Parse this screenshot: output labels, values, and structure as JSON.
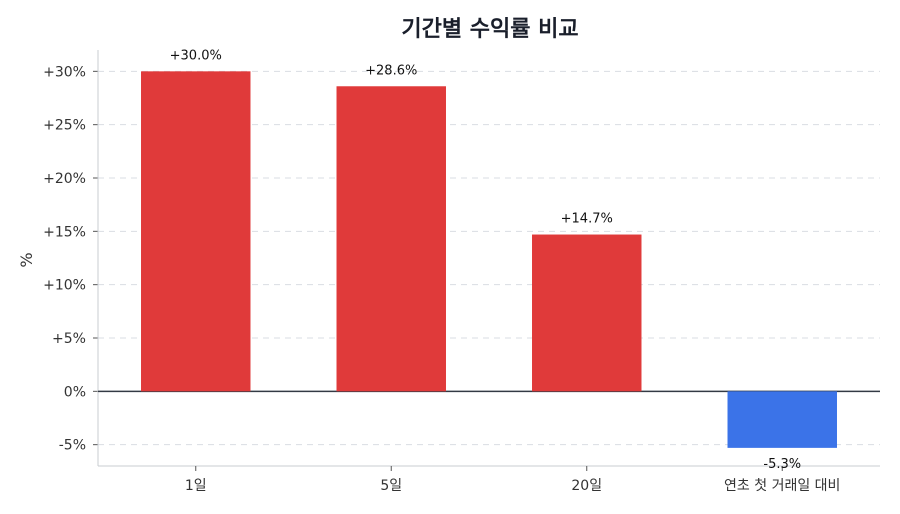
{
  "chart_data": {
    "type": "bar",
    "title": "기간별 수익률 비교",
    "ylabel": "%",
    "xlabel": "",
    "categories": [
      "1일",
      "5일",
      "20일",
      "연초 첫 거래일 대비"
    ],
    "values": [
      30.0,
      28.6,
      14.7,
      -5.3
    ],
    "value_labels": [
      "+30.0%",
      "+28.6%",
      "+14.7%",
      "-5.3%"
    ],
    "ylim": [
      -7,
      32
    ],
    "yticks": [
      -5,
      0,
      5,
      10,
      15,
      20,
      25,
      30
    ],
    "ytick_labels": [
      "-5%",
      "0%",
      "+5%",
      "+10%",
      "+15%",
      "+20%",
      "+25%",
      "+30%"
    ],
    "grid": true,
    "colors": {
      "positive": "#e03a3a",
      "negative": "#3b73e8",
      "zero_line": "#333a44",
      "grid": "#d9dde3",
      "axis": "#c8ccd2"
    }
  }
}
